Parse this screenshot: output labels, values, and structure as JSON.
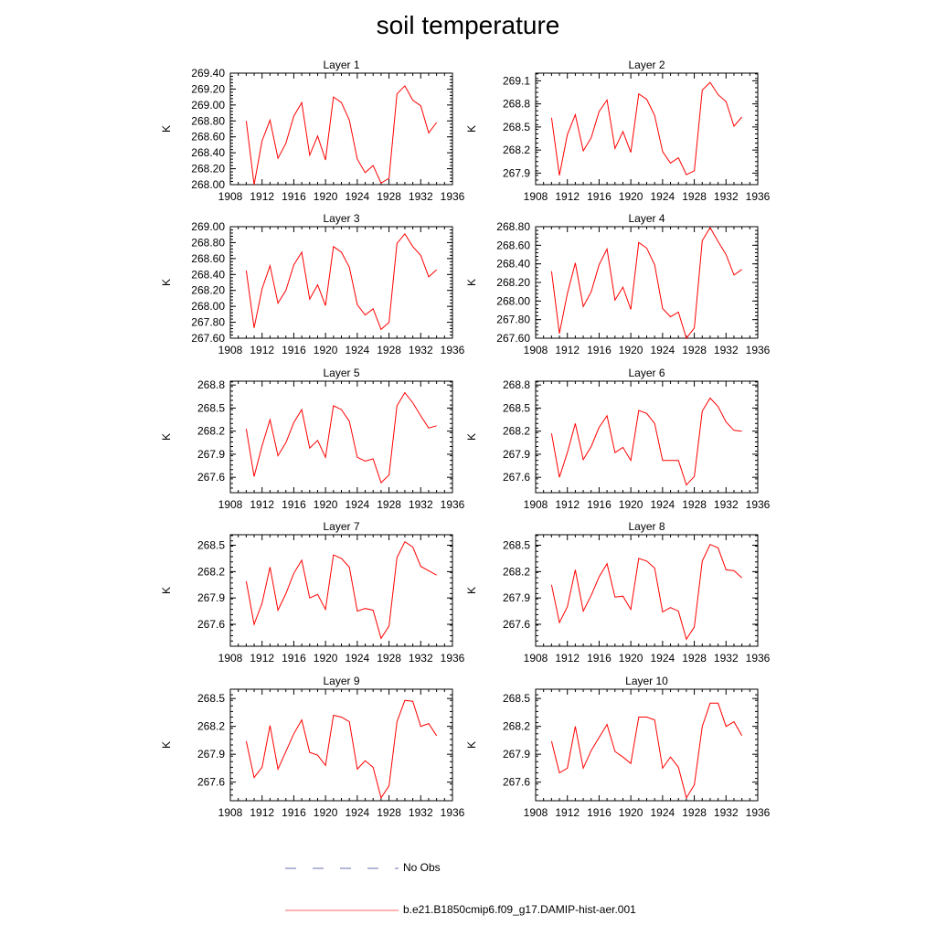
{
  "title": "soil temperature",
  "legend": {
    "entries": [
      {
        "label": "No Obs",
        "style": "dashed",
        "color": "#6a6fb0"
      },
      {
        "label": "b.e21.B1850cmip6.f09_g17.DAMIP-hist-aer.001",
        "style": "solid",
        "color": "#ff6666"
      }
    ]
  },
  "chart_data": [
    {
      "type": "line",
      "title": "Layer 1",
      "ylabel": "K",
      "xlim": [
        1908,
        1936
      ],
      "xticks": [
        1908,
        1912,
        1916,
        1920,
        1924,
        1928,
        1932,
        1936
      ],
      "ylim": [
        268.0,
        269.4
      ],
      "yticks": [
        268.0,
        268.2,
        268.4,
        268.6,
        268.8,
        269.0,
        269.2,
        269.4
      ],
      "ydecimals": 2,
      "series": [
        {
          "x": [
            1910,
            1911,
            1912,
            1913,
            1914,
            1915,
            1916,
            1917,
            1918,
            1919,
            1920,
            1921,
            1922,
            1923,
            1924,
            1925,
            1926,
            1927,
            1928,
            1929,
            1930,
            1931,
            1932,
            1933,
            1934
          ],
          "y": [
            268.8,
            268.0,
            268.55,
            268.81,
            268.33,
            268.52,
            268.86,
            269.03,
            268.37,
            268.61,
            268.31,
            269.1,
            269.03,
            268.81,
            268.32,
            268.15,
            268.24,
            268.02,
            268.08,
            269.14,
            269.24,
            269.06,
            268.99,
            268.65,
            268.78
          ],
          "color": "#ff0000"
        }
      ]
    },
    {
      "type": "line",
      "title": "Layer 2",
      "ylabel": "K",
      "xlim": [
        1908,
        1936
      ],
      "xticks": [
        1908,
        1912,
        1916,
        1920,
        1924,
        1928,
        1932,
        1936
      ],
      "ylim": [
        267.75,
        269.2
      ],
      "yticks": [
        267.9,
        268.2,
        268.5,
        268.8,
        269.1
      ],
      "ydecimals": 1,
      "series": [
        {
          "x": [
            1910,
            1911,
            1912,
            1913,
            1914,
            1915,
            1916,
            1917,
            1918,
            1919,
            1920,
            1921,
            1922,
            1923,
            1924,
            1925,
            1926,
            1927,
            1928,
            1929,
            1930,
            1931,
            1932,
            1933,
            1934
          ],
          "y": [
            268.62,
            267.87,
            268.4,
            268.66,
            268.19,
            268.36,
            268.7,
            268.85,
            268.22,
            268.44,
            268.17,
            268.93,
            268.86,
            268.65,
            268.18,
            268.03,
            268.1,
            267.88,
            267.93,
            268.98,
            269.08,
            268.92,
            268.83,
            268.51,
            268.63
          ],
          "color": "#ff0000"
        }
      ]
    },
    {
      "type": "line",
      "title": "Layer 3",
      "ylabel": "K",
      "xlim": [
        1908,
        1936
      ],
      "xticks": [
        1908,
        1912,
        1916,
        1920,
        1924,
        1928,
        1932,
        1936
      ],
      "ylim": [
        267.6,
        269.0
      ],
      "yticks": [
        267.6,
        267.8,
        268.0,
        268.2,
        268.4,
        268.6,
        268.8,
        269.0
      ],
      "ydecimals": 2,
      "series": [
        {
          "x": [
            1910,
            1911,
            1912,
            1913,
            1914,
            1915,
            1916,
            1917,
            1918,
            1919,
            1920,
            1921,
            1922,
            1923,
            1924,
            1925,
            1926,
            1927,
            1928,
            1929,
            1930,
            1931,
            1932,
            1933,
            1934
          ],
          "y": [
            268.45,
            267.73,
            268.22,
            268.51,
            268.04,
            268.2,
            268.52,
            268.68,
            268.09,
            268.27,
            268.01,
            268.75,
            268.68,
            268.49,
            268.02,
            267.89,
            267.97,
            267.71,
            267.8,
            268.79,
            268.91,
            268.75,
            268.64,
            268.37,
            268.46
          ],
          "color": "#ff0000"
        }
      ]
    },
    {
      "type": "line",
      "title": "Layer 4",
      "ylabel": "K",
      "xlim": [
        1908,
        1936
      ],
      "xticks": [
        1908,
        1912,
        1916,
        1920,
        1924,
        1928,
        1932,
        1936
      ],
      "ylim": [
        267.6,
        268.8
      ],
      "yticks": [
        267.6,
        267.8,
        268.0,
        268.2,
        268.4,
        268.6,
        268.8
      ],
      "ydecimals": 2,
      "series": [
        {
          "x": [
            1910,
            1911,
            1912,
            1913,
            1914,
            1915,
            1916,
            1917,
            1918,
            1919,
            1920,
            1921,
            1922,
            1923,
            1924,
            1925,
            1926,
            1927,
            1928,
            1929,
            1930,
            1931,
            1932,
            1933,
            1934
          ],
          "y": [
            268.32,
            267.65,
            268.08,
            268.41,
            267.94,
            268.1,
            268.39,
            268.56,
            268.01,
            268.15,
            267.91,
            268.63,
            268.57,
            268.39,
            267.92,
            267.83,
            267.88,
            267.6,
            267.71,
            268.65,
            268.79,
            268.64,
            268.5,
            268.28,
            268.34
          ],
          "color": "#ff0000"
        }
      ]
    },
    {
      "type": "line",
      "title": "Layer 5",
      "ylabel": "K",
      "xlim": [
        1908,
        1936
      ],
      "xticks": [
        1908,
        1912,
        1916,
        1920,
        1924,
        1928,
        1932,
        1936
      ],
      "ylim": [
        267.4,
        268.85
      ],
      "yticks": [
        267.6,
        267.9,
        268.2,
        268.5,
        268.8
      ],
      "ydecimals": 1,
      "series": [
        {
          "x": [
            1910,
            1911,
            1912,
            1913,
            1914,
            1915,
            1916,
            1917,
            1918,
            1919,
            1920,
            1921,
            1922,
            1923,
            1924,
            1925,
            1926,
            1927,
            1928,
            1929,
            1930,
            1931,
            1932,
            1933,
            1934
          ],
          "y": [
            268.23,
            267.61,
            268.01,
            268.35,
            267.88,
            268.05,
            268.31,
            268.48,
            267.98,
            268.08,
            267.86,
            268.53,
            268.48,
            268.33,
            267.86,
            267.81,
            267.84,
            267.53,
            267.63,
            268.53,
            268.7,
            268.57,
            268.4,
            268.24,
            268.27
          ],
          "color": "#ff0000"
        }
      ]
    },
    {
      "type": "line",
      "title": "Layer 6",
      "ylabel": "K",
      "xlim": [
        1908,
        1936
      ],
      "xticks": [
        1908,
        1912,
        1916,
        1920,
        1924,
        1928,
        1932,
        1936
      ],
      "ylim": [
        267.4,
        268.85
      ],
      "yticks": [
        267.6,
        267.9,
        268.2,
        268.5,
        268.8
      ],
      "ydecimals": 1,
      "series": [
        {
          "x": [
            1910,
            1911,
            1912,
            1913,
            1914,
            1915,
            1916,
            1917,
            1918,
            1919,
            1920,
            1921,
            1922,
            1923,
            1924,
            1925,
            1926,
            1927,
            1928,
            1929,
            1930,
            1931,
            1932,
            1933,
            1934
          ],
          "y": [
            268.17,
            267.6,
            267.92,
            268.3,
            267.83,
            268.0,
            268.25,
            268.4,
            267.92,
            267.99,
            267.82,
            268.47,
            268.43,
            268.3,
            267.82,
            267.82,
            267.82,
            267.5,
            267.61,
            268.46,
            268.63,
            268.52,
            268.32,
            268.21,
            268.2
          ],
          "color": "#ff0000"
        }
      ]
    },
    {
      "type": "line",
      "title": "Layer 7",
      "ylabel": "K",
      "xlim": [
        1908,
        1936
      ],
      "xticks": [
        1908,
        1912,
        1916,
        1920,
        1924,
        1928,
        1932,
        1936
      ],
      "ylim": [
        267.35,
        268.62
      ],
      "yticks": [
        267.6,
        267.9,
        268.2,
        268.5
      ],
      "ydecimals": 1,
      "series": [
        {
          "x": [
            1910,
            1911,
            1912,
            1913,
            1914,
            1915,
            1916,
            1917,
            1918,
            1919,
            1920,
            1921,
            1922,
            1923,
            1924,
            1925,
            1926,
            1927,
            1928,
            1929,
            1930,
            1931,
            1932,
            1933,
            1934
          ],
          "y": [
            268.09,
            267.6,
            267.84,
            268.25,
            267.76,
            267.95,
            268.18,
            268.33,
            267.9,
            267.94,
            267.77,
            268.39,
            268.35,
            268.25,
            267.75,
            267.78,
            267.76,
            267.44,
            267.58,
            268.36,
            268.54,
            268.48,
            268.26,
            268.21,
            268.16
          ],
          "color": "#ff0000"
        }
      ]
    },
    {
      "type": "line",
      "title": "Layer 8",
      "ylabel": "K",
      "xlim": [
        1908,
        1936
      ],
      "xticks": [
        1908,
        1912,
        1916,
        1920,
        1924,
        1928,
        1932,
        1936
      ],
      "ylim": [
        267.35,
        268.62
      ],
      "yticks": [
        267.6,
        267.9,
        268.2,
        268.5
      ],
      "ydecimals": 1,
      "series": [
        {
          "x": [
            1910,
            1911,
            1912,
            1913,
            1914,
            1915,
            1916,
            1917,
            1918,
            1919,
            1920,
            1921,
            1922,
            1923,
            1924,
            1925,
            1926,
            1927,
            1928,
            1929,
            1930,
            1931,
            1932,
            1933,
            1934
          ],
          "y": [
            268.05,
            267.62,
            267.8,
            268.22,
            267.75,
            267.93,
            268.14,
            268.29,
            267.91,
            267.92,
            267.77,
            268.35,
            268.32,
            268.24,
            267.74,
            267.79,
            267.75,
            267.43,
            267.57,
            268.32,
            268.51,
            268.47,
            268.22,
            268.21,
            268.13
          ],
          "color": "#ff0000"
        }
      ]
    },
    {
      "type": "line",
      "title": "Layer 9",
      "ylabel": "K",
      "xlim": [
        1908,
        1936
      ],
      "xticks": [
        1908,
        1912,
        1916,
        1920,
        1924,
        1928,
        1932,
        1936
      ],
      "ylim": [
        267.4,
        268.6
      ],
      "yticks": [
        267.6,
        267.9,
        268.2,
        268.5
      ],
      "ydecimals": 1,
      "series": [
        {
          "x": [
            1910,
            1911,
            1912,
            1913,
            1914,
            1915,
            1916,
            1917,
            1918,
            1919,
            1920,
            1921,
            1922,
            1923,
            1924,
            1925,
            1926,
            1927,
            1928,
            1929,
            1930,
            1931,
            1932,
            1933,
            1934
          ],
          "y": [
            268.04,
            267.65,
            267.76,
            268.21,
            267.74,
            267.93,
            268.12,
            268.27,
            267.92,
            267.89,
            267.78,
            268.32,
            268.3,
            268.25,
            267.74,
            267.83,
            267.76,
            267.43,
            267.56,
            268.25,
            268.48,
            268.47,
            268.2,
            268.23,
            268.1
          ],
          "color": "#ff0000"
        }
      ]
    },
    {
      "type": "line",
      "title": "Layer 10",
      "ylabel": "K",
      "xlim": [
        1908,
        1936
      ],
      "xticks": [
        1908,
        1912,
        1916,
        1920,
        1924,
        1928,
        1932,
        1936
      ],
      "ylim": [
        267.4,
        268.6
      ],
      "yticks": [
        267.6,
        267.9,
        268.2,
        268.5
      ],
      "ydecimals": 1,
      "series": [
        {
          "x": [
            1910,
            1911,
            1912,
            1913,
            1914,
            1915,
            1916,
            1917,
            1918,
            1919,
            1920,
            1921,
            1922,
            1923,
            1924,
            1925,
            1926,
            1927,
            1928,
            1929,
            1930,
            1931,
            1932,
            1933,
            1934
          ],
          "y": [
            268.04,
            267.7,
            267.75,
            268.2,
            267.75,
            267.94,
            268.08,
            268.22,
            267.93,
            267.87,
            267.8,
            268.3,
            268.3,
            268.27,
            267.75,
            267.87,
            267.76,
            267.43,
            267.57,
            268.2,
            268.45,
            268.45,
            268.2,
            268.25,
            268.1
          ],
          "color": "#ff0000"
        }
      ]
    }
  ]
}
